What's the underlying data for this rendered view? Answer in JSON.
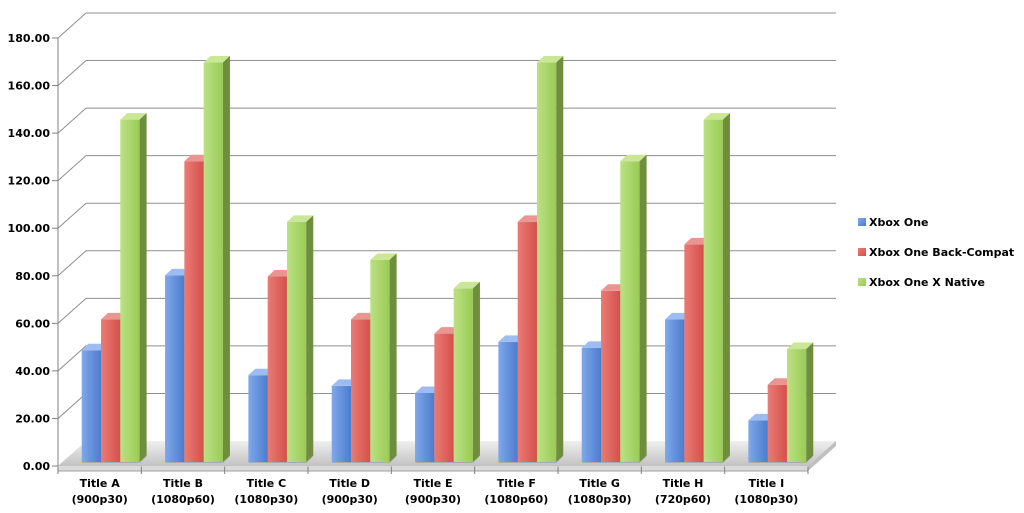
{
  "chart_data": {
    "type": "bar",
    "projection": "3d-column",
    "title": "",
    "xlabel": "",
    "ylabel": "",
    "categories": [
      {
        "label": "Title A",
        "sublabel": "(900p30)"
      },
      {
        "label": "Title B",
        "sublabel": "(1080p60)"
      },
      {
        "label": "Title C",
        "sublabel": "(1080p30)"
      },
      {
        "label": "Title D",
        "sublabel": "(900p30)"
      },
      {
        "label": "Title E",
        "sublabel": "(900p30)"
      },
      {
        "label": "Title F",
        "sublabel": "(1080p60)"
      },
      {
        "label": "Title G",
        "sublabel": "(1080p30)"
      },
      {
        "label": "Title H",
        "sublabel": "(720p60)"
      },
      {
        "label": "Title I",
        "sublabel": "(1080p30)"
      }
    ],
    "series": [
      {
        "name": "Xbox One",
        "values": [
          47,
          78.5,
          36.5,
          32,
          29,
          50.5,
          48,
          60,
          17.5
        ],
        "color_light": "#7FA8EA",
        "color_dark": "#4C7CCE",
        "color_top": "#9DBCF1",
        "color_side": "#3E69B0"
      },
      {
        "name": "Xbox One Back-Compat",
        "values": [
          60,
          126.5,
          78,
          60,
          54,
          101,
          72,
          91.5,
          32.5
        ],
        "color_light": "#EA7B75",
        "color_dark": "#D5504C",
        "color_top": "#E99690",
        "color_side": "#B03E3A"
      },
      {
        "name": "Xbox One X Native",
        "values": [
          144,
          168,
          101,
          85,
          73,
          168,
          126.5,
          144,
          47.5
        ],
        "color_light": "#BCE084",
        "color_dark": "#9ACB55",
        "color_top": "#C9E795",
        "color_side": "#6E8D3D"
      }
    ],
    "ylim": [
      0,
      180
    ],
    "ytick_step": 20,
    "yticklabels": [
      "0.00",
      "20.00",
      "40.00",
      "60.00",
      "80.00",
      "100.00",
      "120.00",
      "140.00",
      "160.00",
      "180.00"
    ],
    "grid": true,
    "legend_position": "right",
    "colors": {
      "background": "#FFFFFF",
      "text": "#000000",
      "gridline": "#8F8F8F",
      "axis": "#808080",
      "floor_light": "#EFEFEF",
      "floor_dark": "#C2C2C2",
      "floor_front": "#DADADA",
      "floor_side": "#BFBFBF",
      "floor_edge": "#9E9E9E"
    }
  }
}
